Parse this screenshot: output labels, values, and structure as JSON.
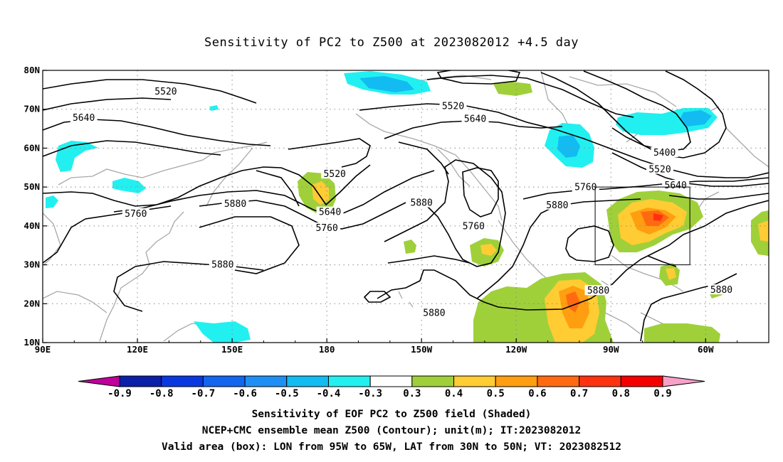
{
  "title": "Sensitivity of PC2 to Z500 at 2023082012 +4.5 day",
  "captions": [
    "Sensitivity of EOF PC2 to Z500 field (Shaded)",
    "NCEP+CMC ensemble mean Z500 (Contour); unit(m); IT:2023082012",
    "Valid area (box): LON from 95W to 65W, LAT from 30N to 50N; VT: 2023082512"
  ],
  "map": {
    "lon_range": [
      90,
      320
    ],
    "lat_range": [
      10,
      80
    ],
    "lon_ticks": [
      {
        "lon": 90,
        "label": "90E"
      },
      {
        "lon": 120,
        "label": "120E"
      },
      {
        "lon": 150,
        "label": "150E"
      },
      {
        "lon": 180,
        "label": "180"
      },
      {
        "lon": 210,
        "label": "150W"
      },
      {
        "lon": 240,
        "label": "120W"
      },
      {
        "lon": 270,
        "label": "90W"
      },
      {
        "lon": 300,
        "label": "60W"
      }
    ],
    "lat_ticks": [
      {
        "lat": 10,
        "label": "10N"
      },
      {
        "lat": 20,
        "label": "20N"
      },
      {
        "lat": 30,
        "label": "30N"
      },
      {
        "lat": 40,
        "label": "40N"
      },
      {
        "lat": 50,
        "label": "50N"
      },
      {
        "lat": 60,
        "label": "60N"
      },
      {
        "lat": 70,
        "label": "70N"
      },
      {
        "lat": 80,
        "label": "80N"
      }
    ],
    "valid_box": {
      "lon": [
        265,
        295
      ],
      "lat": [
        30,
        50
      ]
    },
    "grid": true
  },
  "colorbar": {
    "levels": [
      "-0.9",
      "-0.8",
      "-0.7",
      "-0.6",
      "-0.5",
      "-0.4",
      "-0.3",
      "0.3",
      "0.4",
      "0.5",
      "0.6",
      "0.7",
      "0.8",
      "0.9"
    ],
    "colors": [
      "#c0009a",
      "#0b1fa8",
      "#0a38e0",
      "#1266f0",
      "#1e90f5",
      "#12bcf2",
      "#22f0f0",
      "#ffffff",
      "#9fd03a",
      "#ffcc33",
      "#ff9e10",
      "#ff6a10",
      "#ff3210",
      "#f50000",
      "#f7a0c8"
    ]
  },
  "chart_data": {
    "type": "map",
    "contour_labels": [
      {
        "text": "5520",
        "lon": 129.0,
        "lat": 74.5
      },
      {
        "text": "5640",
        "lon": 103.0,
        "lat": 67.8
      },
      {
        "text": "5520",
        "lon": 220.0,
        "lat": 70.8
      },
      {
        "text": "5640",
        "lon": 227.0,
        "lat": 67.5
      },
      {
        "text": "5520",
        "lon": 182.5,
        "lat": 53.3
      },
      {
        "text": "5400",
        "lon": 287.0,
        "lat": 58.8
      },
      {
        "text": "5520",
        "lon": 285.5,
        "lat": 54.5
      },
      {
        "text": "5640",
        "lon": 290.5,
        "lat": 50.4
      },
      {
        "text": "5760",
        "lon": 262.0,
        "lat": 49.9
      },
      {
        "text": "5760",
        "lon": 119.5,
        "lat": 43.1
      },
      {
        "text": "5880",
        "lon": 151.0,
        "lat": 45.6
      },
      {
        "text": "5640",
        "lon": 181.0,
        "lat": 43.5
      },
      {
        "text": "5760",
        "lon": 180.0,
        "lat": 39.4
      },
      {
        "text": "5880",
        "lon": 210.0,
        "lat": 45.9
      },
      {
        "text": "5880",
        "lon": 253.0,
        "lat": 45.3
      },
      {
        "text": "5760",
        "lon": 226.5,
        "lat": 39.9
      },
      {
        "text": "5880",
        "lon": 147.0,
        "lat": 30.0
      },
      {
        "text": "5880",
        "lon": 266.0,
        "lat": 23.3
      },
      {
        "text": "5880",
        "lon": 305.0,
        "lat": 23.5
      },
      {
        "text": "5880",
        "lon": 214.0,
        "lat": 17.6
      }
    ]
  }
}
